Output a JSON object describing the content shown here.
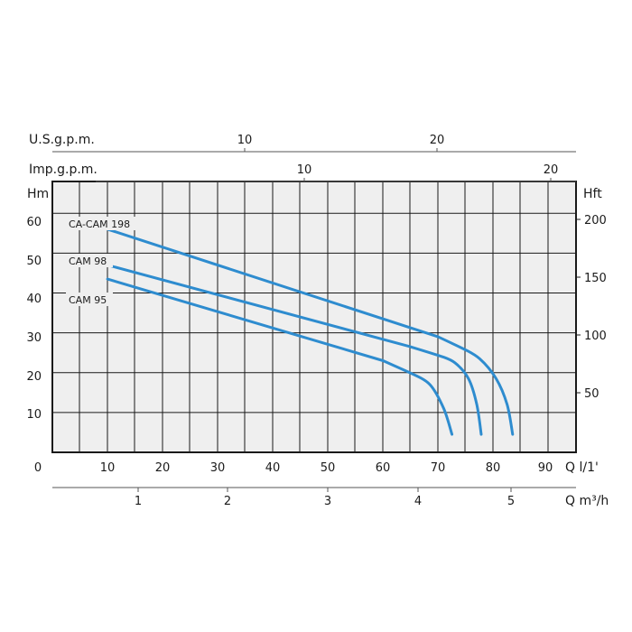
{
  "chart_data": {
    "type": "line",
    "axes": {
      "usgpm": {
        "label": "U.S.g.p.m.",
        "ticks": [
          "10",
          "20"
        ]
      },
      "impgpm": {
        "label": "Imp.g.p.m.",
        "ticks": [
          "10",
          "20"
        ]
      },
      "left": {
        "label": "Hm",
        "ticks": [
          "0",
          "10",
          "20",
          "30",
          "40",
          "50",
          "60"
        ],
        "range": [
          0,
          68
        ]
      },
      "right": {
        "label": "Hft",
        "ticks": [
          "50",
          "100",
          "150",
          "200"
        ]
      },
      "bottom_lmin": {
        "label": "Q l/1'",
        "ticks": [
          "10",
          "20",
          "30",
          "40",
          "50",
          "60",
          "70",
          "80",
          "90"
        ],
        "range": [
          0,
          95
        ]
      },
      "bottom_m3h": {
        "label": "Q m³/h",
        "ticks": [
          "1",
          "2",
          "3",
          "4",
          "5"
        ]
      }
    },
    "grid": true,
    "series": [
      {
        "name": "CA-CAM 198",
        "color": "#2e8ccf",
        "points": [
          [
            10,
            56
          ],
          [
            70,
            29
          ],
          [
            74,
            26.5
          ],
          [
            77.5,
            23.5
          ],
          [
            80.5,
            18.5
          ],
          [
            82.5,
            12
          ],
          [
            83.5,
            4.5
          ]
        ]
      },
      {
        "name": "CAM 98",
        "color": "#2e8ccf",
        "points": [
          [
            10,
            47
          ],
          [
            65,
            26.5
          ],
          [
            70,
            24.5
          ],
          [
            73,
            22.5
          ],
          [
            75.5,
            18.5
          ],
          [
            77,
            12
          ],
          [
            77.8,
            4.5
          ]
        ]
      },
      {
        "name": "CAM 95",
        "color": "#2e8ccf",
        "points": [
          [
            10,
            43.5
          ],
          [
            60,
            23
          ],
          [
            65,
            20
          ],
          [
            68.5,
            17
          ],
          [
            71,
            11
          ],
          [
            72.5,
            4.5
          ]
        ]
      }
    ]
  }
}
